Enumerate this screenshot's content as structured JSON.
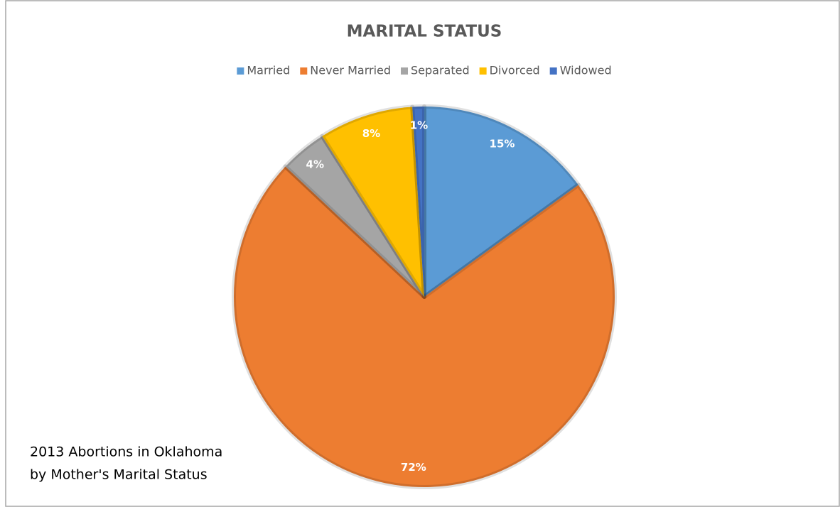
{
  "chart_data": {
    "type": "pie",
    "title": "MARITAL STATUS",
    "categories": [
      "Married",
      "Never Married",
      "Separated",
      "Divorced",
      "Widowed"
    ],
    "values": [
      15,
      72,
      4,
      8,
      1
    ],
    "value_labels": [
      "15%",
      "72%",
      "4%",
      "8%",
      "1%"
    ],
    "colors": [
      "#5b9bd5",
      "#ed7d31",
      "#a5a5a5",
      "#ffc000",
      "#4472c4"
    ],
    "legend": "top",
    "annotation": [
      "2013 Abortions in Oklahoma",
      "by Mother's Marital Status"
    ]
  }
}
